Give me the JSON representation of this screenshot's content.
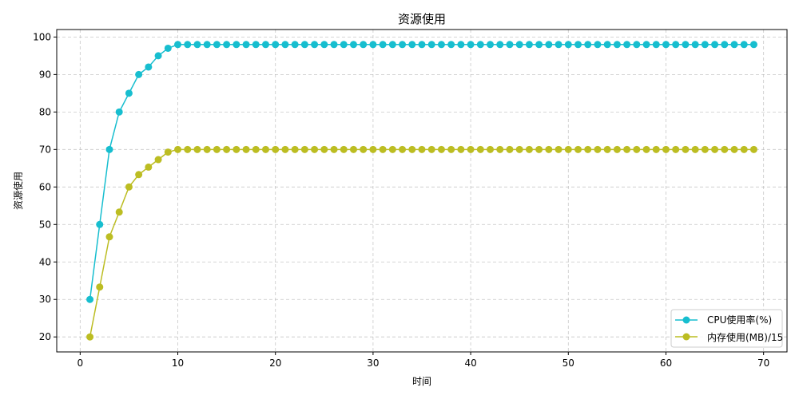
{
  "chart_data": {
    "type": "line",
    "title": "资源使用",
    "xlabel": "时间",
    "ylabel": "资源使用",
    "xlim": [
      -2.4,
      72.4
    ],
    "ylim": [
      16,
      102
    ],
    "xticks": [
      "0",
      "10",
      "20",
      "30",
      "40",
      "50",
      "60",
      "70"
    ],
    "yticks": [
      "20",
      "30",
      "40",
      "50",
      "60",
      "70",
      "80",
      "90",
      "100"
    ],
    "grid": true,
    "legend_position": "lower-right",
    "x": [
      1,
      2,
      3,
      4,
      5,
      6,
      7,
      8,
      9,
      10,
      11,
      12,
      13,
      14,
      15,
      16,
      17,
      18,
      19,
      20,
      21,
      22,
      23,
      24,
      25,
      26,
      27,
      28,
      29,
      30,
      31,
      32,
      33,
      34,
      35,
      36,
      37,
      38,
      39,
      40,
      41,
      42,
      43,
      44,
      45,
      46,
      47,
      48,
      49,
      50,
      51,
      52,
      53,
      54,
      55,
      56,
      57,
      58,
      59,
      60,
      61,
      62,
      63,
      64,
      65,
      66,
      67,
      68,
      69
    ],
    "series": [
      {
        "name": "CPU使用率(%)",
        "color": "#17becf",
        "values": [
          30,
          50,
          70,
          80,
          85,
          90,
          92,
          95,
          97,
          98,
          98,
          98,
          98,
          98,
          98,
          98,
          98,
          98,
          98,
          98,
          98,
          98,
          98,
          98,
          98,
          98,
          98,
          98,
          98,
          98,
          98,
          98,
          98,
          98,
          98,
          98,
          98,
          98,
          98,
          98,
          98,
          98,
          98,
          98,
          98,
          98,
          98,
          98,
          98,
          98,
          98,
          98,
          98,
          98,
          98,
          98,
          98,
          98,
          98,
          98,
          98,
          98,
          98,
          98,
          98,
          98,
          98,
          98,
          98
        ]
      },
      {
        "name": "内存使用(MB)/15",
        "color": "#bcbd22",
        "values": [
          20,
          33.3,
          46.7,
          53.3,
          60,
          63.3,
          65.3,
          67.3,
          69.3,
          70,
          70,
          70,
          70,
          70,
          70,
          70,
          70,
          70,
          70,
          70,
          70,
          70,
          70,
          70,
          70,
          70,
          70,
          70,
          70,
          70,
          70,
          70,
          70,
          70,
          70,
          70,
          70,
          70,
          70,
          70,
          70,
          70,
          70,
          70,
          70,
          70,
          70,
          70,
          70,
          70,
          70,
          70,
          70,
          70,
          70,
          70,
          70,
          70,
          70,
          70,
          70,
          70,
          70,
          70,
          70,
          70,
          70,
          70,
          70
        ]
      }
    ]
  }
}
